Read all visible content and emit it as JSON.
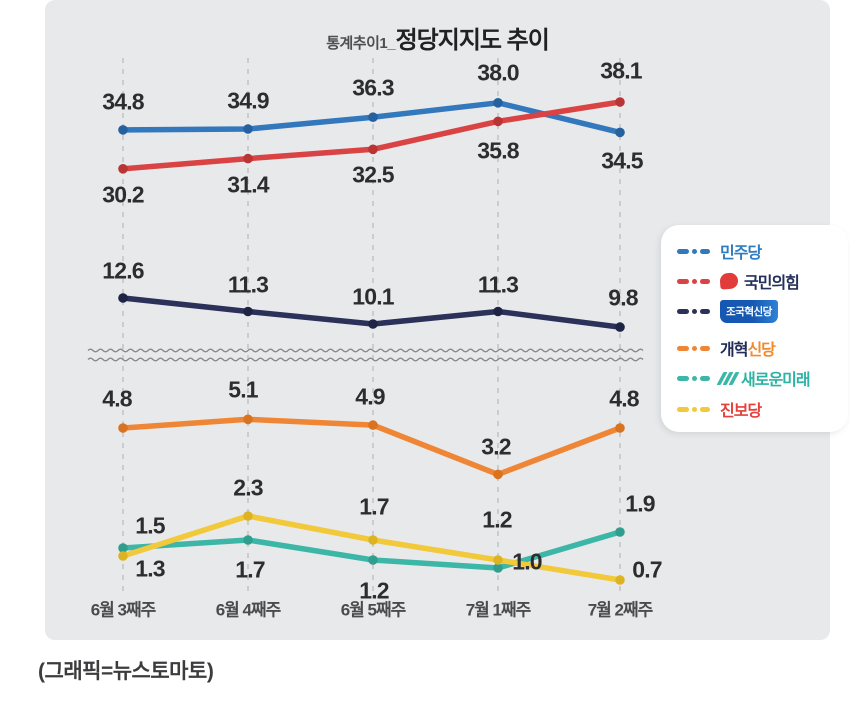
{
  "title": {
    "prefix": "통계추이1",
    "separator": "_",
    "main": "정당지지도 추이"
  },
  "caption": "(그래픽=뉴스토마토)",
  "chart_data": {
    "type": "line",
    "title": "통계추이1_정당지지도 추이",
    "categories": [
      "6월 3째주",
      "6월 4째주",
      "6월 5째주",
      "7월 1째주",
      "7월 2째주"
    ],
    "series": [
      {
        "name": "민주당",
        "color": "#3377bd",
        "values": [
          34.8,
          34.9,
          36.3,
          38.0,
          34.5
        ]
      },
      {
        "name": "국민의힘",
        "color": "#da4343",
        "values": [
          30.2,
          31.4,
          32.5,
          35.8,
          38.1
        ]
      },
      {
        "name": "조국혁신당",
        "color": "#2b3158",
        "values": [
          12.6,
          11.3,
          10.1,
          11.3,
          9.8
        ]
      },
      {
        "name": "개혁신당",
        "color": "#ee8636",
        "values": [
          4.8,
          5.1,
          4.9,
          3.2,
          4.8
        ]
      },
      {
        "name": "새로운미래",
        "color": "#3cb6a6",
        "values": [
          1.5,
          1.7,
          1.2,
          1.0,
          1.9
        ]
      },
      {
        "name": "진보당",
        "color": "#f2c93b",
        "values": [
          1.3,
          2.3,
          1.7,
          1.2,
          0.7
        ]
      }
    ],
    "axis_break": true,
    "grid": "dashed-vertical",
    "legend_position": "right",
    "unit": "%"
  },
  "legend": {
    "items": [
      {
        "label": "민주당",
        "text_color": "#2e7cc2",
        "icon": "none"
      },
      {
        "label": "국민의힘",
        "text_color": "#24305c",
        "icon": "ppp-logo"
      },
      {
        "label": "조국혁신당",
        "text_color": "#ffffff",
        "icon": "blue-flag-badge",
        "badge_bg": "#1557b2"
      },
      {
        "label": "개혁신당",
        "icon": "none",
        "parts": [
          {
            "text": "개혁",
            "color": "#212c57"
          },
          {
            "text": "신당",
            "color": "#f28a2e"
          }
        ]
      },
      {
        "label": "새로운미래",
        "text_color": "#2cb3a3",
        "icon": "teal-slashes"
      },
      {
        "label": "진보당",
        "text_color": "#e5403c",
        "icon": "none"
      }
    ]
  },
  "colors": {
    "card_bg": "#e8e9eb",
    "gridline": "#c7c9cc",
    "axis_break": "#85888c",
    "label_text": "#2d2d2f"
  }
}
